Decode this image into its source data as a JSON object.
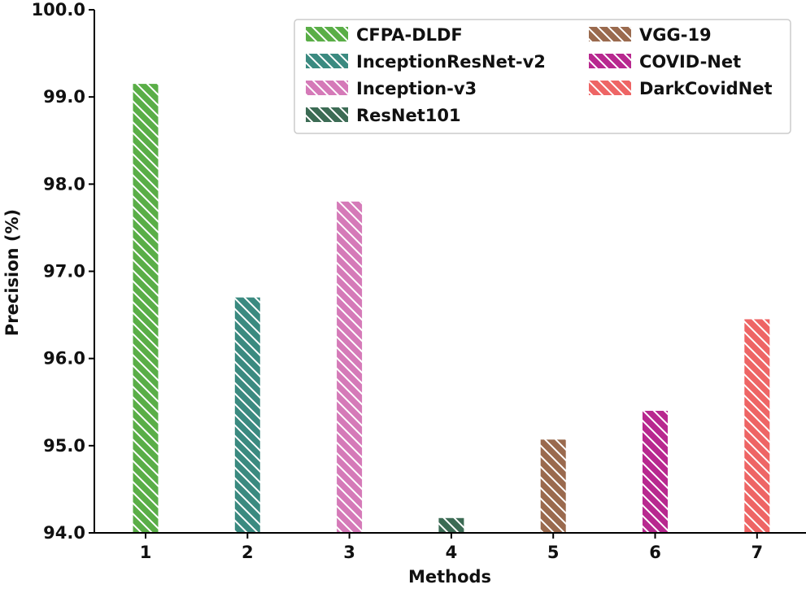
{
  "chart_data": {
    "type": "bar",
    "title": "",
    "xlabel": "Methods",
    "ylabel": "Precision (%)",
    "ylim": [
      94.0,
      100.0
    ],
    "yticks": [
      94.0,
      95.0,
      96.0,
      97.0,
      98.0,
      99.0,
      100.0
    ],
    "ytick_labels": [
      "94.0",
      "95.0",
      "96.0",
      "97.0",
      "98.0",
      "99.0",
      "100.0"
    ],
    "categories": [
      "1",
      "2",
      "3",
      "4",
      "5",
      "6",
      "7"
    ],
    "series": [
      {
        "name": "CFPA-DLDF",
        "category": "1",
        "value": 99.15,
        "color": "#5aae47"
      },
      {
        "name": "InceptionResNet-v2",
        "category": "2",
        "value": 96.7,
        "color": "#3b8a80"
      },
      {
        "name": "Inception-v3",
        "category": "3",
        "value": 97.8,
        "color": "#d57ab8"
      },
      {
        "name": "ResNet101",
        "category": "4",
        "value": 94.17,
        "color": "#3c6b54"
      },
      {
        "name": "VGG-19",
        "category": "5",
        "value": 95.07,
        "color": "#9a6a4e"
      },
      {
        "name": "COVID-Net",
        "category": "6",
        "value": 95.4,
        "color": "#b8288f"
      },
      {
        "name": "DarkCovidNet",
        "category": "7",
        "value": 96.45,
        "color": "#ee6565"
      }
    ],
    "hatch": "diagonal",
    "grid": false,
    "legend_position": "top-right"
  }
}
